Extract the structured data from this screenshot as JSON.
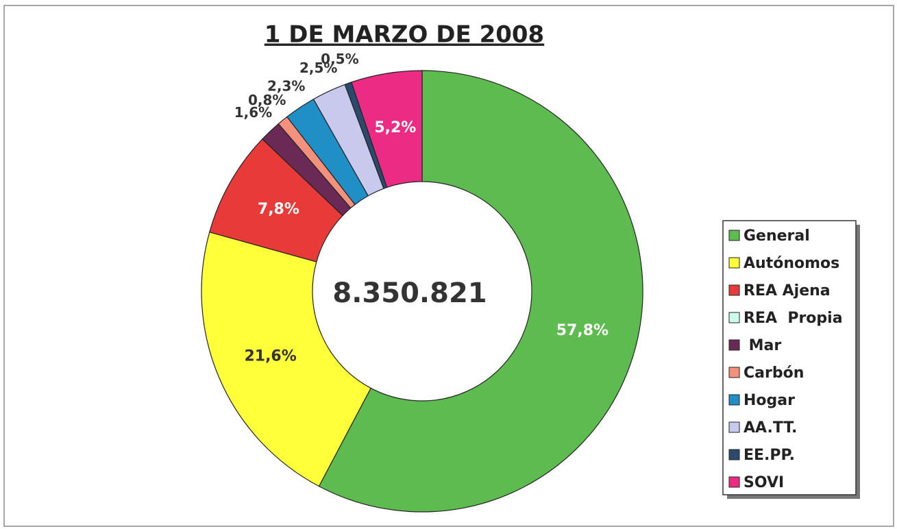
{
  "chart_data": {
    "type": "donut",
    "title": "1 DE MARZO DE 2008",
    "center_label": "8.350.821",
    "categories": [
      "General",
      "Autónomos",
      "REA Ajena",
      "REA  Propia",
      " Mar",
      "Carbón",
      "Hogar",
      "AA.TT.",
      "EE.PP.",
      "SOVI"
    ],
    "values": [
      57.8,
      21.6,
      7.8,
      0,
      1.6,
      0.8,
      2.3,
      2.5,
      0.5,
      5.2
    ],
    "value_labels": [
      "57,8%",
      "21,6%",
      "7,8%",
      null,
      "1,6%",
      "0,8%",
      "2,3%",
      "2,5%",
      "0,5%",
      "5,2%"
    ],
    "colors": [
      "#5dbb4f",
      "#ffff3a",
      "#e93a3a",
      "#ccffee",
      "#6b2a55",
      "#f4917c",
      "#1f8fc6",
      "#c9c9ee",
      "#2c4a6e",
      "#ec2b84"
    ],
    "legend": "right"
  }
}
